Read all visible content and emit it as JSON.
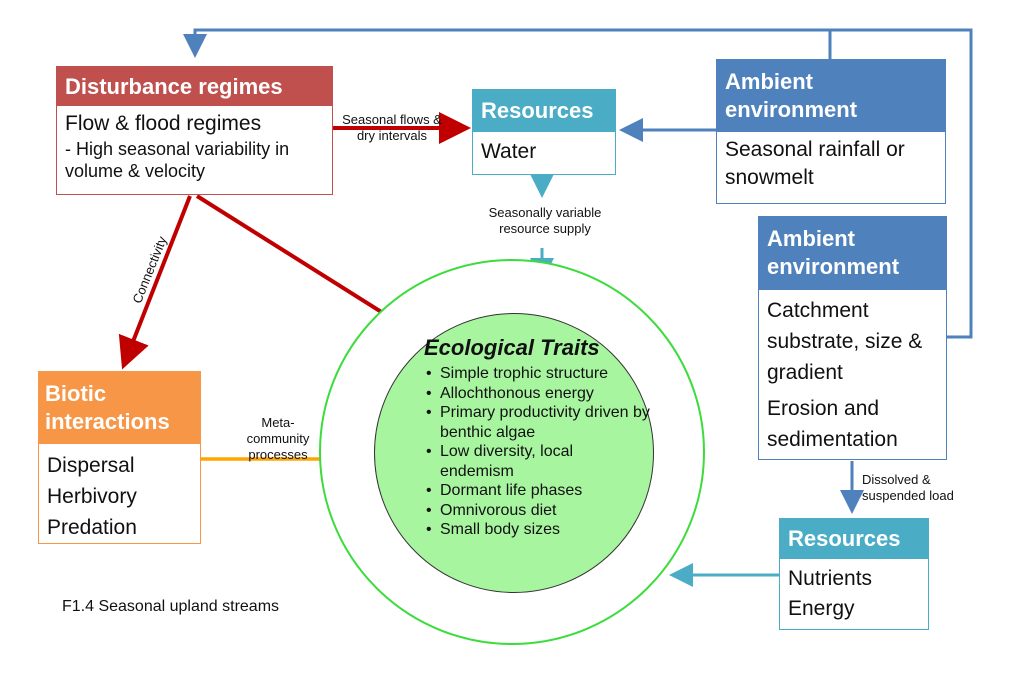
{
  "caption": "F1.4 Seasonal upland streams",
  "colors": {
    "disturbance": "#c0504d",
    "resources": "#4bacc6",
    "ambient": "#4f81bd",
    "biotic": "#f79646",
    "traits_fill": "#a8f5a0",
    "traits_ring": "#3cdc3c",
    "red_arrow": "#c00000",
    "orange_arrow": "#ffa500",
    "blue_arrow": "#4f81bd",
    "teal_arrow": "#4bacc6"
  },
  "disturbance": {
    "title": "Disturbance regimes",
    "line1": "Flow & flood regimes",
    "line2": "- High seasonal variability in volume & velocity"
  },
  "resources_water": {
    "title": "Resources",
    "line1": "Water"
  },
  "ambient1": {
    "title": "Ambient environment",
    "line1": "Seasonal rainfall or snowmelt"
  },
  "ambient2": {
    "title": "Ambient environment",
    "line1": "Catchment substrate, size & gradient",
    "line2": "Erosion and sedimentation"
  },
  "biotic": {
    "title": "Biotic interactions",
    "lines": [
      "Dispersal",
      "Herbivory",
      "Predation"
    ]
  },
  "resources_nutrients": {
    "title": "Resources",
    "lines": [
      "Nutrients",
      "Energy"
    ]
  },
  "traits": {
    "title": "Ecological Traits",
    "items": [
      "Simple trophic structure",
      "Allochthonous energy",
      "Primary productivity driven by benthic algae",
      "Low diversity, local endemism",
      "Dormant life phases",
      "Omnivorous diet",
      "Small body sizes"
    ]
  },
  "labels": {
    "seasonal_flows": "Seasonal flows & dry intervals",
    "resource_supply": "Seasonally variable resource supply",
    "connectivity": "Connectivity",
    "metacommunity": "Meta-community processes",
    "dissolved": "Dissolved & suspended load"
  }
}
